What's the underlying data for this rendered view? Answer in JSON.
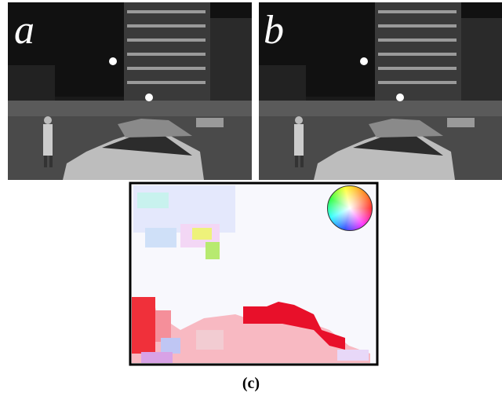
{
  "figure": {
    "panels": [
      {
        "label": "a"
      },
      {
        "label": "b"
      },
      {
        "label": "(c)"
      }
    ]
  }
}
